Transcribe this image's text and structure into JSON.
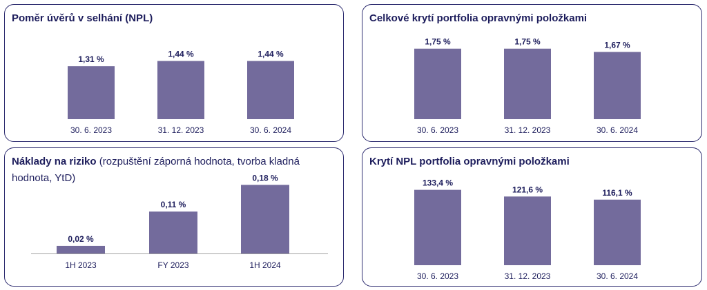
{
  "colors": {
    "bar": "#736b9c",
    "border": "#2b2a6e",
    "text": "#1d1d5c"
  },
  "chart_data": [
    {
      "type": "bar",
      "title": "Poměr úvěrů v selhání (NPL)",
      "categories": [
        "30. 6. 2023",
        "31. 12. 2023",
        "30. 6. 2024"
      ],
      "values": [
        1.31,
        1.44,
        1.44
      ],
      "labels": [
        "1,31 %",
        "1,44 %",
        "1,44 %"
      ],
      "ylim": [
        0,
        3.0
      ]
    },
    {
      "type": "bar",
      "title": "Celkové krytí portfolia opravnými položkami",
      "categories": [
        "30. 6. 2023",
        "31. 12. 2023",
        "30. 6. 2024"
      ],
      "values": [
        1.75,
        1.75,
        1.67
      ],
      "labels": [
        "1,75 %",
        "1,75 %",
        "1,67 %"
      ],
      "ylim": [
        0,
        2.6
      ]
    },
    {
      "type": "bar",
      "title": "Náklady na riziko",
      "subtitle": "(rozpuštění záporná hodnota, tvorba kladná hodnota, YtD)",
      "categories": [
        "1H 2023",
        "FY 2023",
        "1H 2024"
      ],
      "values": [
        0.02,
        0.11,
        0.18
      ],
      "labels": [
        "0,02 %",
        "0,11 %",
        "0,18 %"
      ],
      "ylim": [
        0,
        0.3
      ]
    },
    {
      "type": "bar",
      "title": "Krytí NPL portfolia opravnými položkami",
      "categories": [
        "30. 6. 2023",
        "31. 12. 2023",
        "30. 6. 2024"
      ],
      "values": [
        133.4,
        121.6,
        116.1
      ],
      "labels": [
        "133,4 %",
        "121,6 %",
        "116,1 %"
      ],
      "ylim": [
        0,
        200
      ]
    }
  ]
}
